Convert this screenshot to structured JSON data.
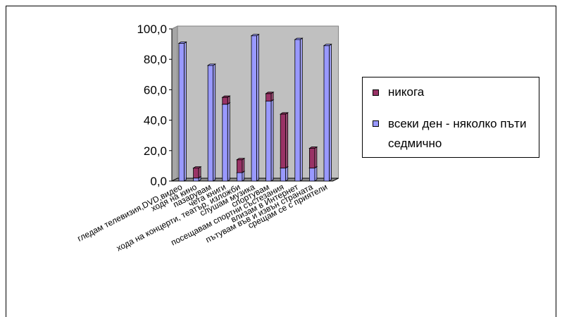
{
  "chart_data": {
    "type": "bar",
    "stacked": true,
    "three_d": true,
    "categories": [
      "гледам телевизия,DVD,видео",
      "ходя на кино",
      "пазарувам",
      "чета книги",
      "хода на концерти, театър, изложби",
      "слушам музика",
      "спортувам",
      "посещавам спортни състезания",
      "влизам в Интернет",
      "пътувам във и извън страната",
      "срещам се с приятели"
    ],
    "series": [
      {
        "name": "всеки ден - няколко пъти седмично",
        "color": "#9999ff",
        "values": [
          90.5,
          2.0,
          76.0,
          50.5,
          5.5,
          95.5,
          52.5,
          8.5,
          93.0,
          8.5,
          89.0
        ]
      },
      {
        "name": "никога",
        "color": "#993366",
        "values": [
          0.0,
          6.5,
          0.0,
          4.5,
          8.5,
          0.0,
          5.0,
          35.5,
          0.0,
          13.0,
          0.0
        ]
      }
    ],
    "ylim": [
      0,
      100
    ],
    "yticks": [
      "0,0",
      "20,0",
      "40,0",
      "60,0",
      "80,0",
      "100,0"
    ],
    "wall_color": "#c0c0c0",
    "grid": false,
    "legend_position": "right"
  }
}
